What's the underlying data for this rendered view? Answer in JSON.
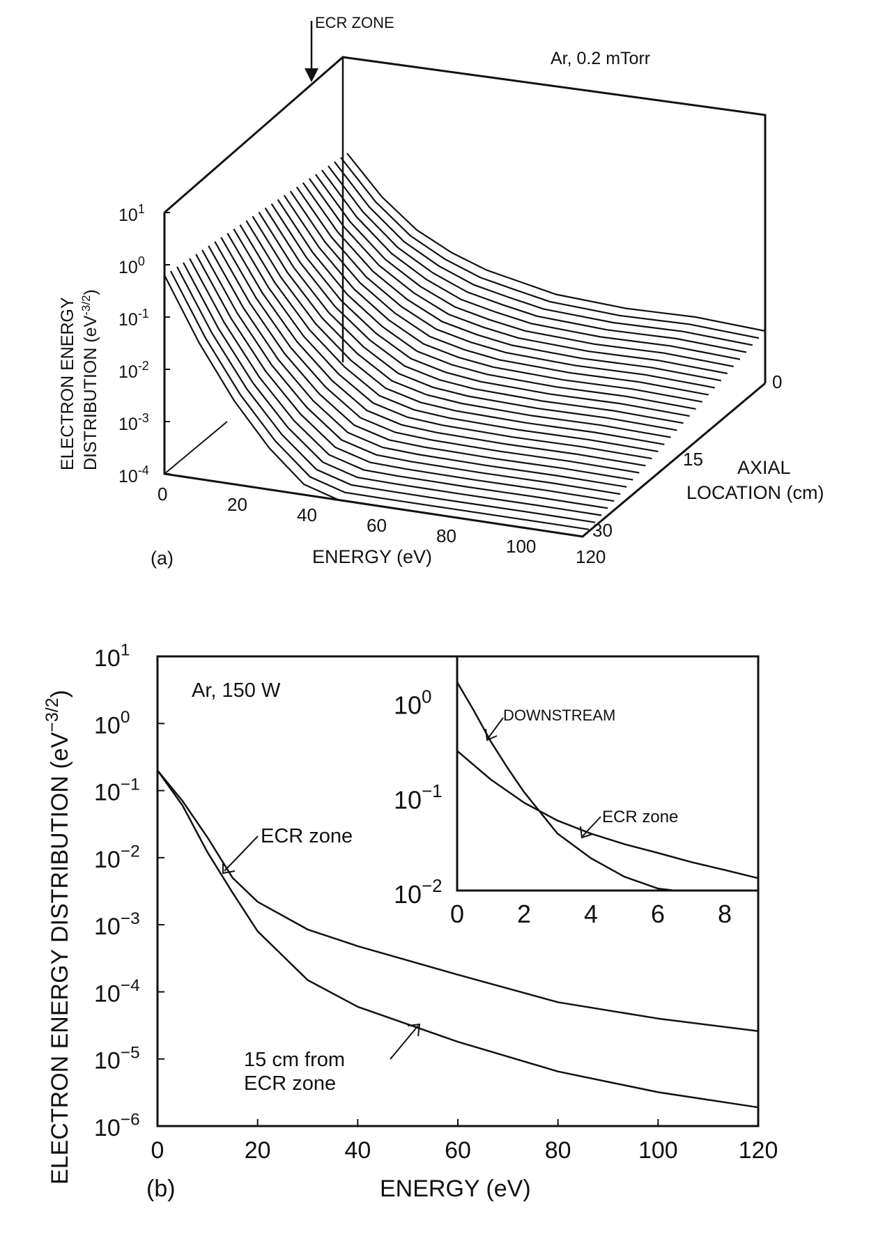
{
  "chart_data": [
    {
      "panel": "(a)",
      "type": "line",
      "subtype": "3d-waterfall",
      "annotation": "Ar, 0.2 mTorr",
      "marker_label": "ECR ZONE",
      "xlabel": "ENERGY (eV)",
      "ylabel": "ELECTRON ENERGY DISTRIBUTION (eV",
      "ylabel_exponent": "-3/2",
      "ylabel_close": ")",
      "zlabel_line1": "AXIAL",
      "zlabel_line2": "LOCATION (cm)",
      "x_ticks": [
        "0",
        "20",
        "40",
        "60",
        "80",
        "100",
        "120"
      ],
      "y_ticks": [
        {
          "base": "10",
          "exp": "1"
        },
        {
          "base": "10",
          "exp": "0"
        },
        {
          "base": "10",
          "exp": "-1"
        },
        {
          "base": "10",
          "exp": "-2"
        },
        {
          "base": "10",
          "exp": "-3"
        },
        {
          "base": "10",
          "exp": "-4"
        }
      ],
      "z_ticks": [
        "0",
        "15",
        "30"
      ],
      "xlim": [
        0,
        120
      ],
      "ylim_log10": [
        -4,
        1
      ],
      "zlim": [
        0,
        30
      ],
      "n_traces": 30,
      "profile": {
        "energy": [
          0,
          10,
          20,
          30,
          40,
          50,
          60,
          70,
          80,
          90,
          100,
          110,
          120
        ],
        "log10_value_upstream": [
          0.0,
          -0.8,
          -1.4,
          -1.8,
          -2.1,
          -2.3,
          -2.5,
          -2.6,
          -2.7,
          -2.75,
          -2.8,
          -2.9,
          -3.0
        ],
        "log10_value_downstream": [
          -0.2,
          -1.4,
          -2.4,
          -3.2,
          -3.8,
          -4.0,
          -4.0,
          -4.0,
          -4.0,
          -4.0,
          -4.0,
          -4.0,
          -4.0
        ]
      }
    },
    {
      "panel": "(b)",
      "type": "line",
      "log_y": true,
      "annotation": "Ar, 150 W",
      "xlabel": "ENERGY (eV)",
      "ylabel": "ELECTRON ENERGY DISTRIBUTION (eV",
      "ylabel_exponent": "−3/2",
      "ylabel_close": ")",
      "xlim": [
        0,
        120
      ],
      "ylim": [
        1e-06,
        10
      ],
      "x_ticks": [
        "0",
        "20",
        "40",
        "60",
        "80",
        "100",
        "120"
      ],
      "y_ticks": [
        {
          "base": "10",
          "exp": "1"
        },
        {
          "base": "10",
          "exp": "0"
        },
        {
          "base": "10",
          "exp": "−1"
        },
        {
          "base": "10",
          "exp": "−2"
        },
        {
          "base": "10",
          "exp": "−3"
        },
        {
          "base": "10",
          "exp": "−4"
        },
        {
          "base": "10",
          "exp": "−5"
        },
        {
          "base": "10",
          "exp": "−6"
        }
      ],
      "series": [
        {
          "label": "ECR zone",
          "x": [
            0,
            5,
            10,
            15,
            20,
            30,
            40,
            60,
            80,
            100,
            120
          ],
          "y": [
            0.2,
            0.07,
            0.02,
            0.005,
            0.0022,
            0.00085,
            0.00048,
            0.00018,
            7e-05,
            4e-05,
            2.6e-05
          ]
        },
        {
          "label_line1": "15 cm from",
          "label_line2": "ECR zone",
          "x": [
            0,
            5,
            10,
            15,
            20,
            30,
            40,
            60,
            80,
            100,
            120
          ],
          "y": [
            0.2,
            0.06,
            0.012,
            0.003,
            0.0008,
            0.00015,
            6e-05,
            1.8e-05,
            6.5e-06,
            3.2e-06,
            1.9e-06
          ]
        }
      ],
      "inset": {
        "xlim": [
          0,
          9
        ],
        "ylim": [
          0.01,
          3
        ],
        "x_ticks": [
          "0",
          "2",
          "4",
          "6",
          "8"
        ],
        "y_ticks": [
          {
            "base": "10",
            "exp": "0"
          },
          {
            "base": "10",
            "exp": "−1"
          },
          {
            "base": "10",
            "exp": "−2"
          }
        ],
        "series": [
          {
            "label": "DOWNSTREAM",
            "x": [
              0,
              0.5,
              1,
              1.5,
              2,
              3,
              4,
              5,
              6,
              6.5
            ],
            "y": [
              1.6,
              0.8,
              0.38,
              0.2,
              0.11,
              0.04,
              0.022,
              0.014,
              0.0105,
              0.01
            ]
          },
          {
            "label": "ECR zone",
            "x": [
              0,
              1,
              2,
              3,
              4,
              5,
              6,
              7,
              8,
              9
            ],
            "y": [
              0.3,
              0.15,
              0.085,
              0.055,
              0.04,
              0.031,
              0.025,
              0.02,
              0.0165,
              0.0135
            ]
          }
        ]
      }
    }
  ],
  "colors": {
    "ink": "#111111",
    "paper": "#ffffff"
  }
}
